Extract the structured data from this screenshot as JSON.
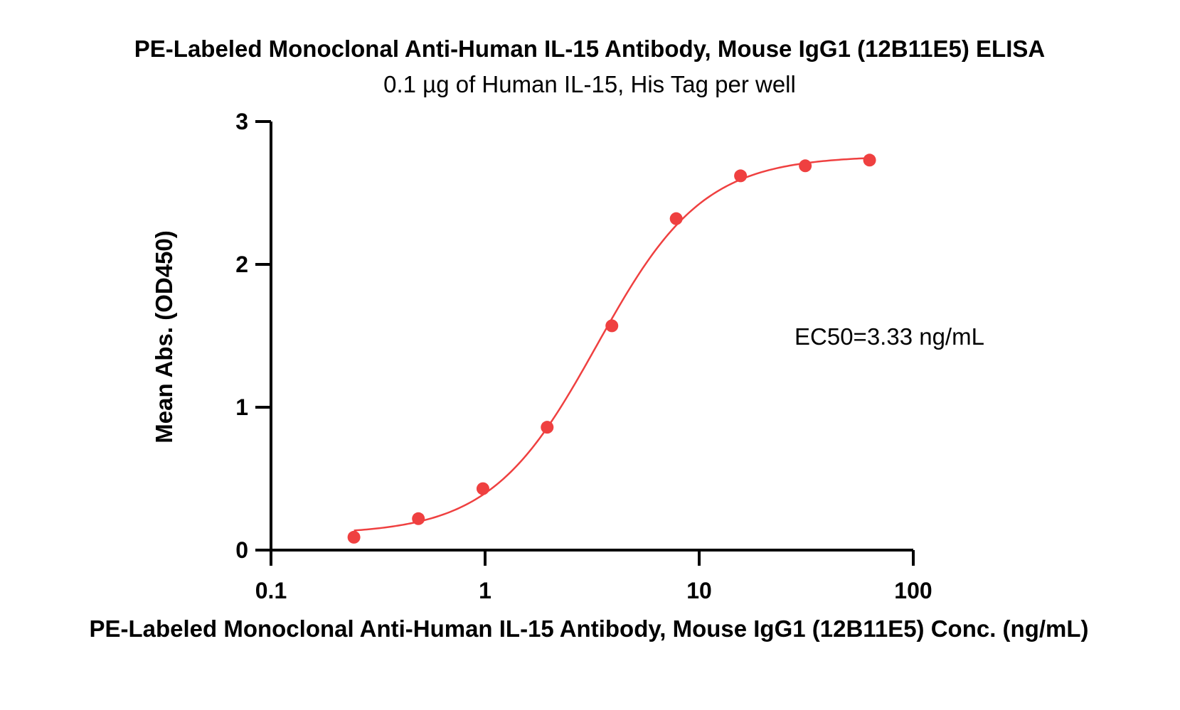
{
  "chart_data": {
    "type": "scatter",
    "title": "PE-Labeled Monoclonal Anti-Human IL-15 Antibody, Mouse IgG1 (12B11E5) ELISA",
    "subtitle": "0.1 µg of Human IL-15, His Tag per well",
    "xlabel": "PE-Labeled Monoclonal Anti-Human IL-15 Antibody, Mouse IgG1 (12B11E5) Conc. (ng/mL)",
    "ylabel": "Mean Abs. (OD450)",
    "xscale": "log",
    "xlim": [
      0.1,
      100
    ],
    "ylim": [
      0,
      3
    ],
    "xticks": [
      0.1,
      1,
      10,
      100
    ],
    "xtick_labels": [
      "0.1",
      "1",
      "10",
      "100"
    ],
    "yticks": [
      0,
      1,
      2,
      3
    ],
    "ytick_labels": [
      "0",
      "1",
      "2",
      "3"
    ],
    "grid": false,
    "color": "#ef4040",
    "series": [
      {
        "x": [
          0.244,
          0.488,
          0.977,
          1.95,
          3.91,
          7.81,
          15.6,
          31.3,
          62.5
        ],
        "y": [
          0.09,
          0.22,
          0.43,
          0.86,
          1.57,
          2.32,
          2.62,
          2.69,
          2.73
        ]
      }
    ],
    "fit_curve": {
      "model": "4PL",
      "bottom": 0.11,
      "top": 2.76,
      "ec50": 3.33,
      "hill": 1.75,
      "x_range": [
        0.244,
        62.5
      ]
    },
    "annotations": [
      {
        "text": "EC50=3.33 ng/mL"
      }
    ]
  }
}
